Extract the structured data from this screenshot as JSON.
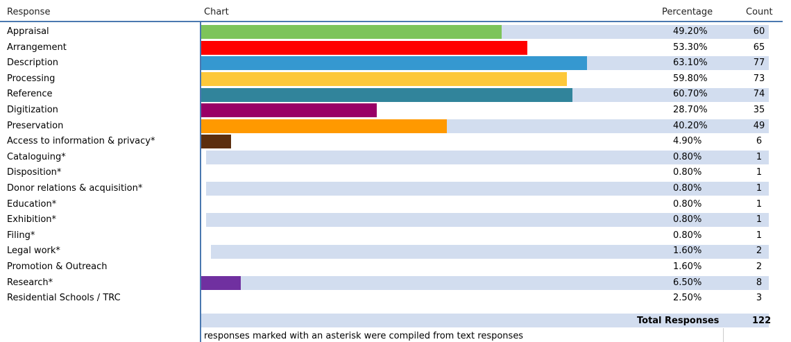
{
  "headers": {
    "response": "Response",
    "chart": "Chart",
    "percentage": "Percentage",
    "count": "Count"
  },
  "chart_data": {
    "type": "bar",
    "orientation": "horizontal",
    "categories": [
      "Appraisal",
      "Arrangement",
      "Description",
      "Processing",
      "Reference",
      "Digitization",
      "Preservation",
      "Access to information & privacy*",
      "Cataloguing*",
      "Disposition*",
      "Donor relations & acquisition*",
      "Education*",
      "Exhibition*",
      "Filing*",
      "Legal work*",
      "Promotion & Outreach",
      "Research*",
      "Residential Schools / TRC"
    ],
    "values": [
      49.2,
      53.3,
      63.1,
      59.8,
      60.7,
      28.7,
      40.2,
      4.9,
      0.8,
      0.8,
      0.8,
      0.8,
      0.8,
      0.8,
      1.6,
      1.6,
      6.5,
      2.5
    ],
    "percent_labels": [
      "49.20%",
      "53.30%",
      "63.10%",
      "59.80%",
      "60.70%",
      "28.70%",
      "40.20%",
      "4.90%",
      "0.80%",
      "0.80%",
      "0.80%",
      "0.80%",
      "0.80%",
      "0.80%",
      "1.60%",
      "1.60%",
      "6.50%",
      "2.50%"
    ],
    "counts": [
      "60",
      "65",
      "77",
      "73",
      "74",
      "35",
      "49",
      "6",
      "1",
      "1",
      "1",
      "1",
      "1",
      "1",
      "2",
      "2",
      "8",
      "3"
    ],
    "bar_colors": [
      "#7dc45a",
      "#ff0000",
      "#3598d0",
      "#fdc83a",
      "#31849b",
      "#990066",
      "#ff9900",
      "#5c2e0e",
      "#ffffff",
      "#ffffff",
      "#ffffff",
      "#ffffff",
      "#ffffff",
      "#ffffff",
      "#ffffff",
      "#ffffff",
      "#7030a0",
      "#ffffff"
    ]
  },
  "total": {
    "label": "Total Responses",
    "value": "122"
  },
  "footnote": "responses marked with an asterisk were compiled from text responses"
}
